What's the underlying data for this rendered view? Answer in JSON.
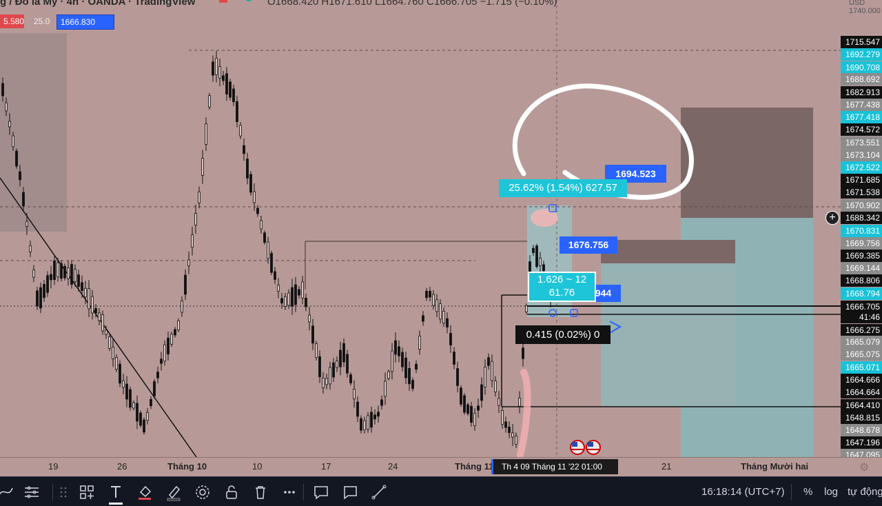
{
  "header": {
    "title": "g / Đô la Mỹ · 4h · OANDA · TradingView",
    "ohlc": "O1668.420  H1671.610  L1664.760  C1666.705  −1.715 (−0.10%)",
    "sell_price": "5.580",
    "spread": "25.0",
    "buy_price": "1666.830",
    "currency": "USD",
    "axis_top_price": "1740.000"
  },
  "price_axis": [
    {
      "value": "1715.547",
      "color": "dark"
    },
    {
      "value": "1692.279",
      "color": "cyan"
    },
    {
      "value": "1690.708",
      "color": "cyan"
    },
    {
      "value": "1688.692",
      "color": "grey"
    },
    {
      "value": "1682.913",
      "color": "dark"
    },
    {
      "value": "1677.438",
      "color": "grey"
    },
    {
      "value": "1677.418",
      "color": "cyan"
    },
    {
      "value": "1674.572",
      "color": "dark"
    },
    {
      "value": "1673.551",
      "color": "grey"
    },
    {
      "value": "1673.104",
      "color": "grey"
    },
    {
      "value": "1672.522",
      "color": "cyan"
    },
    {
      "value": "1671.685",
      "color": "dark"
    },
    {
      "value": "1671.538",
      "color": "dark"
    },
    {
      "value": "1670.902",
      "color": "grey"
    },
    {
      "value": "1688.342",
      "color": "dark"
    },
    {
      "value": "1670.831",
      "color": "cyan"
    },
    {
      "value": "1669.756",
      "color": "grey"
    },
    {
      "value": "1669.385",
      "color": "dark"
    },
    {
      "value": "1669.144",
      "color": "grey"
    },
    {
      "value": "1668.806",
      "color": "dark"
    },
    {
      "value": "1668.794",
      "color": "cyan"
    },
    {
      "value": "1666.705",
      "color": "dark"
    },
    {
      "value": "41:46",
      "color": "dark"
    },
    {
      "value": "1666.275",
      "color": "dark"
    },
    {
      "value": "1665.079",
      "color": "grey"
    },
    {
      "value": "1665.075",
      "color": "grey"
    },
    {
      "value": "1665.071",
      "color": "cyan"
    },
    {
      "value": "1664.666",
      "color": "dark"
    },
    {
      "value": "1664.664",
      "color": "dark"
    },
    {
      "value": "1664.410",
      "color": "dark"
    },
    {
      "value": "1648.815",
      "color": "dark"
    },
    {
      "value": "1648.678",
      "color": "grey"
    },
    {
      "value": "1647.196",
      "color": "dark"
    },
    {
      "value": "1647.095",
      "color": "grey"
    }
  ],
  "time_axis": {
    "ticks": [
      {
        "label": "19",
        "bold": false
      },
      {
        "label": "26",
        "bold": false
      },
      {
        "label": "Tháng 10",
        "bold": true
      },
      {
        "label": "10",
        "bold": false
      },
      {
        "label": "17",
        "bold": false
      },
      {
        "label": "24",
        "bold": false
      },
      {
        "label": "Tháng 11",
        "bold": true
      },
      {
        "label": "21",
        "bold": false
      },
      {
        "label": "Tháng Mười hai",
        "bold": true
      }
    ],
    "cursor_label": "Th 4 09 Tháng 11 '22   01:00"
  },
  "labels": {
    "target_price": "1694.523",
    "measure": "25.62% (1.54%) 627.57",
    "entry_price": "1676.756",
    "ratio": "1.626 ~ 12",
    "ratio_value": "61.76",
    "partial_price": "944",
    "pnl": "0.415 (0.02%) 0"
  },
  "toolbar": {
    "clock": "16:18:14 (UTC+7)",
    "percent": "%",
    "log": "log",
    "auto": "tự động"
  },
  "colors": {
    "background": "#b79a98",
    "candle": "#111111",
    "target_zone": "#7a6766",
    "stop_zone": "#8fb3b4",
    "accent_blue": "#2962ff",
    "accent_cyan": "#1ec5d8"
  }
}
